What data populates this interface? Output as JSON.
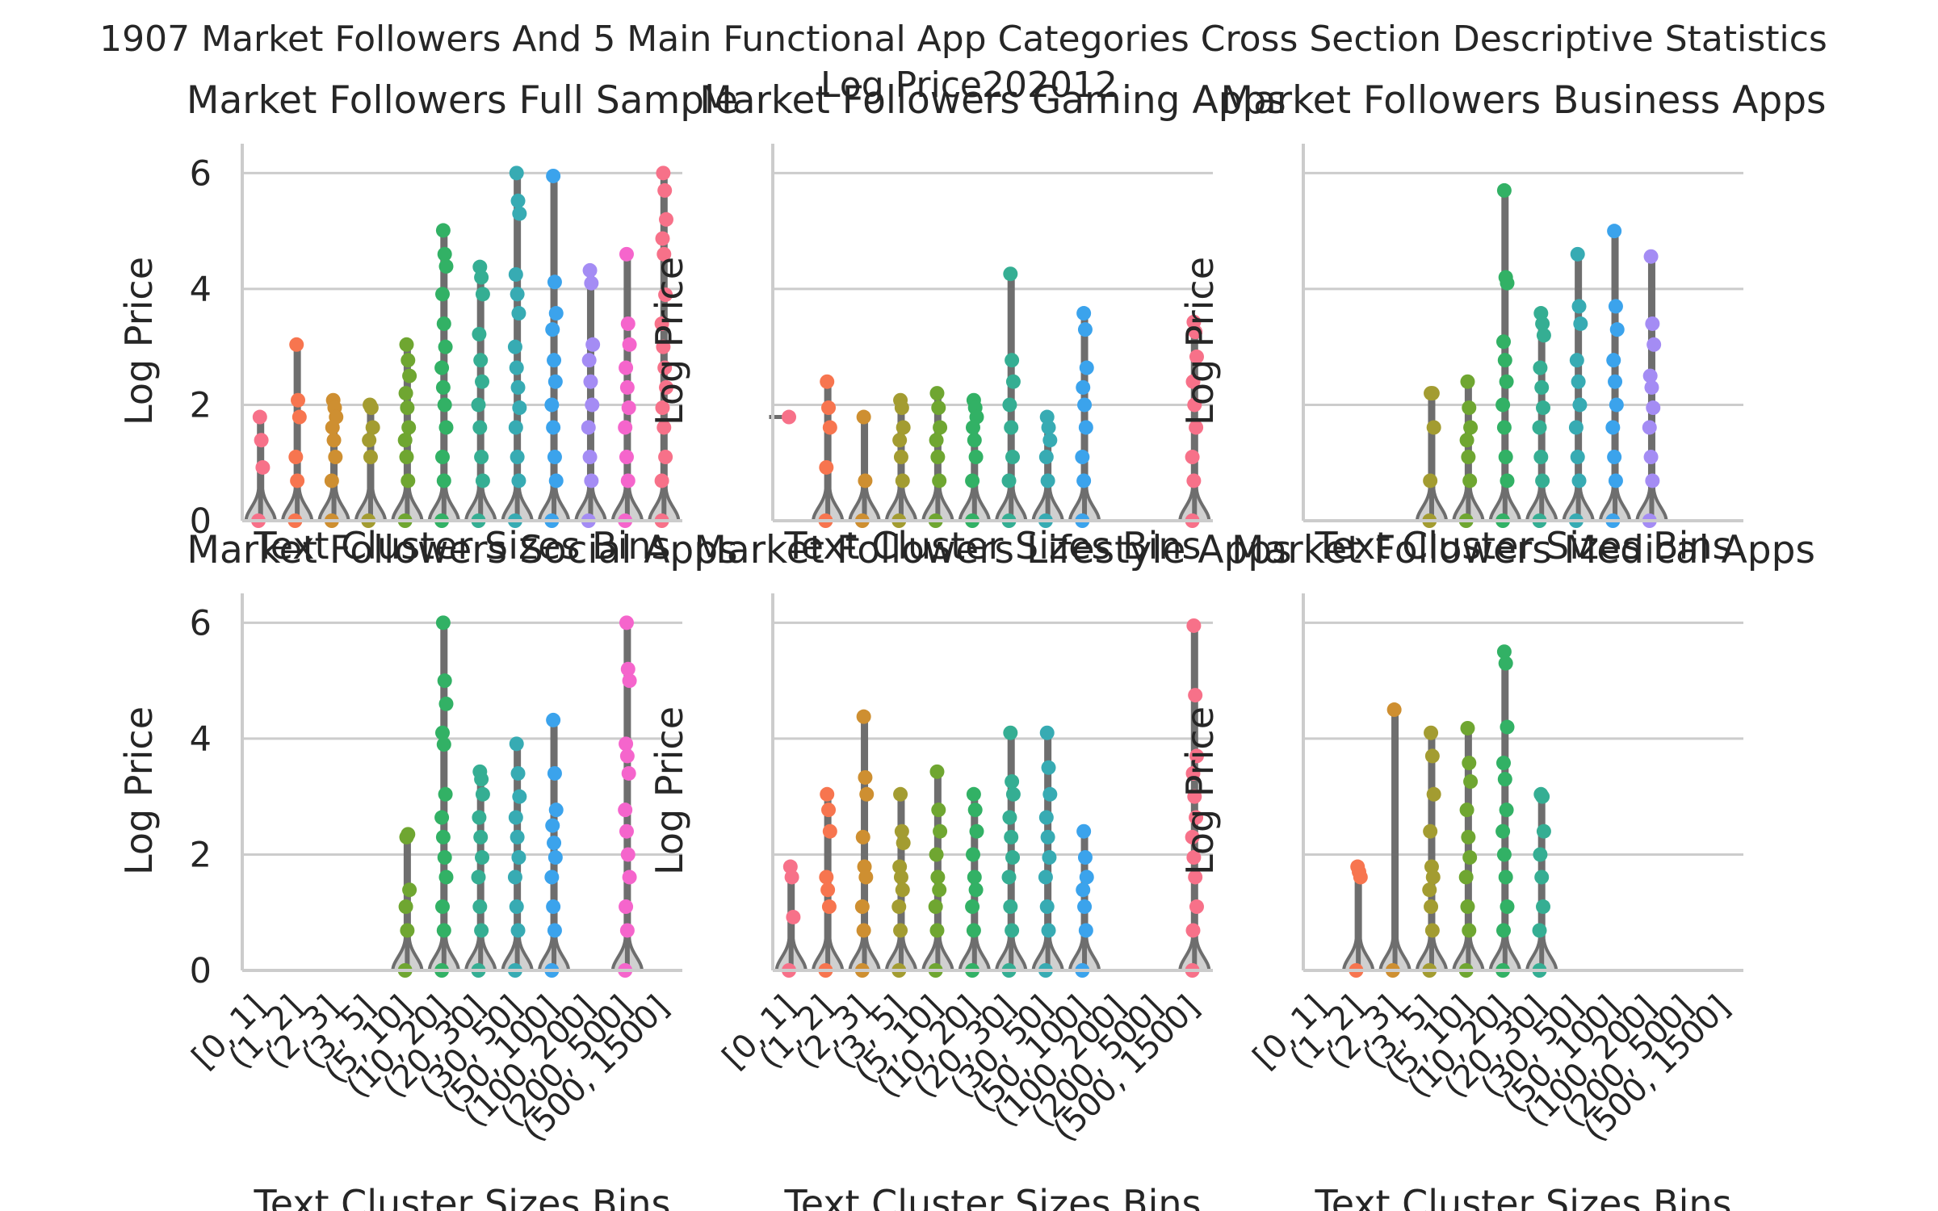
{
  "figure": {
    "title": "1907 Market Followers And 5 Main Functional App Categories Cross Section Descriptive Statistics\nLog Price202012"
  },
  "palette": [
    "#f77189",
    "#f7754f",
    "#ce8f31",
    "#a39c31",
    "#6fa631",
    "#32b165",
    "#35ae93",
    "#37abb3",
    "#3ba3ec",
    "#a48cf4",
    "#f565cc"
  ],
  "axis_style": {
    "grid": true,
    "grid_color": "#cccccc",
    "spine_color": "#cccccc",
    "violin_fill": "#d0d0d0",
    "violin_edge": "#6e6e6e"
  },
  "chart_data": [
    {
      "type": "violin+strip",
      "title": "Market Followers Full Sample",
      "xlabel": "Text Cluster Sizes Bins",
      "ylabel": "Log Price",
      "categories": [
        "[0, 1]",
        "(1, 2]",
        "(2, 3]",
        "(3, 5]",
        "(5, 10]",
        "(10, 20]",
        "(20, 30]",
        "(30, 50]",
        "(50, 100]",
        "(100, 200]",
        "(200, 500]",
        "(500, 1500]"
      ],
      "yticks": [
        0,
        2,
        4,
        6
      ],
      "ylim": [
        0,
        6.2
      ],
      "show_yticklabels": true,
      "show_xticklabels": false,
      "points": [
        [
          0,
          1.79,
          1.39,
          0.92
        ],
        [
          0,
          3.04,
          2.08,
          1.79,
          1.1,
          0.69
        ],
        [
          0,
          2.08,
          1.95,
          1.79,
          1.61,
          1.39,
          1.1,
          0.69
        ],
        [
          0,
          2.0,
          1.95,
          1.61,
          1.39,
          1.1
        ],
        [
          0,
          3.04,
          2.77,
          2.5,
          2.2,
          1.95,
          1.61,
          1.39,
          1.1,
          0.69
        ],
        [
          0,
          5.01,
          4.6,
          4.39,
          3.91,
          3.4,
          3.0,
          2.64,
          2.3,
          2.0,
          1.61,
          1.1,
          0.69
        ],
        [
          0,
          4.38,
          4.2,
          3.91,
          3.22,
          2.77,
          2.4,
          2.0,
          1.61,
          1.1,
          0.69
        ],
        [
          0,
          6.0,
          5.52,
          5.3,
          4.25,
          3.91,
          3.58,
          3.0,
          2.64,
          2.3,
          1.95,
          1.61,
          1.1,
          0.69
        ],
        [
          0,
          5.95,
          4.12,
          3.58,
          3.3,
          2.77,
          2.4,
          2.0,
          1.61,
          1.1,
          0.69
        ],
        [
          0,
          4.32,
          4.1,
          3.04,
          2.77,
          2.4,
          2.0,
          1.61,
          1.1,
          0.69
        ],
        [
          0,
          4.6,
          3.4,
          3.04,
          2.64,
          2.3,
          1.95,
          1.61,
          1.1,
          0.69
        ],
        [
          0,
          6.0,
          5.7,
          5.2,
          4.87,
          4.6,
          3.9,
          3.4,
          3.0,
          2.64,
          2.3,
          1.95,
          1.61,
          1.1,
          0.69
        ]
      ]
    },
    {
      "type": "violin+strip",
      "title": "Market Followers Gaming Apps",
      "xlabel": "Text Cluster Sizes Bins",
      "ylabel": "Log Price",
      "categories": [
        "[0, 1]",
        "(1, 2]",
        "(2, 3]",
        "(3, 5]",
        "(5, 10]",
        "(10, 20]",
        "(20, 30]",
        "(30, 50]",
        "(50, 100]",
        "(100, 200]",
        "(200, 500]",
        "(500, 1500]"
      ],
      "yticks": [
        0,
        2,
        4,
        6
      ],
      "ylim": [
        0,
        6.2
      ],
      "show_yticklabels": false,
      "show_xticklabels": false,
      "points": [
        [
          1.79
        ],
        [
          0,
          2.4,
          1.95,
          1.61,
          0.92
        ],
        [
          0,
          1.79,
          0.69
        ],
        [
          0,
          2.08,
          1.95,
          1.61,
          1.39,
          1.1,
          0.69
        ],
        [
          0,
          2.2,
          1.95,
          1.61,
          1.39,
          1.1,
          0.69
        ],
        [
          0,
          2.08,
          1.95,
          1.79,
          1.61,
          1.39,
          1.1,
          0.69
        ],
        [
          0,
          4.26,
          2.77,
          2.4,
          2.0,
          1.61,
          1.1,
          0.69
        ],
        [
          0,
          1.79,
          1.61,
          1.39,
          1.1,
          0.69
        ],
        [
          0,
          3.58,
          3.3,
          2.64,
          2.3,
          2.0,
          1.61,
          1.1,
          0.69
        ],
        [],
        [],
        [
          0,
          3.43,
          3.26,
          2.83,
          2.4,
          2.0,
          1.61,
          1.1,
          0.69
        ]
      ]
    },
    {
      "type": "violin+strip",
      "title": "Market Followers Business Apps",
      "xlabel": "Text Cluster Sizes Bins",
      "ylabel": "Log Price",
      "categories": [
        "[0, 1]",
        "(1, 2]",
        "(2, 3]",
        "(3, 5]",
        "(5, 10]",
        "(10, 20]",
        "(20, 30]",
        "(30, 50]",
        "(50, 100]",
        "(100, 200]",
        "(200, 500]",
        "(500, 1500]"
      ],
      "yticks": [
        0,
        2,
        4,
        6
      ],
      "ylim": [
        0,
        6.2
      ],
      "show_yticklabels": false,
      "show_xticklabels": false,
      "points": [
        [],
        [],
        [],
        [
          0,
          2.2,
          2.2,
          1.61,
          0.69
        ],
        [
          0,
          2.4,
          1.95,
          1.61,
          1.39,
          1.1,
          0.69
        ],
        [
          0,
          5.7,
          4.2,
          4.1,
          3.09,
          2.77,
          2.4,
          2.0,
          1.61,
          1.1,
          0.69
        ],
        [
          0,
          3.58,
          3.4,
          3.2,
          2.64,
          2.3,
          1.95,
          1.61,
          1.1,
          0.69
        ],
        [
          0,
          4.6,
          3.7,
          3.4,
          2.77,
          2.4,
          2.0,
          1.61,
          1.1,
          0.69
        ],
        [
          0,
          5.0,
          3.7,
          3.3,
          2.77,
          2.4,
          2.0,
          1.61,
          1.1,
          0.69
        ],
        [
          0,
          4.56,
          3.4,
          3.04,
          2.5,
          2.3,
          1.95,
          1.61,
          1.1,
          0.69
        ],
        [],
        []
      ]
    },
    {
      "type": "violin+strip",
      "title": "Market Followers Social Apps",
      "xlabel": "Text Cluster Sizes Bins",
      "ylabel": "Log Price",
      "categories": [
        "[0, 1]",
        "(1, 2]",
        "(2, 3]",
        "(3, 5]",
        "(5, 10]",
        "(10, 20]",
        "(20, 30]",
        "(30, 50]",
        "(50, 100]",
        "(100, 200]",
        "(200, 500]",
        "(500, 1500]"
      ],
      "yticks": [
        0,
        2,
        4,
        6
      ],
      "ylim": [
        0,
        6.2
      ],
      "show_yticklabels": true,
      "show_xticklabels": true,
      "points": [
        [],
        [],
        [],
        [],
        [
          0,
          2.3,
          2.35,
          1.39,
          1.1,
          0.69
        ],
        [
          0,
          6.0,
          5.0,
          4.6,
          4.1,
          3.9,
          3.04,
          2.64,
          2.3,
          1.95,
          1.61,
          1.1,
          0.69
        ],
        [
          0,
          3.43,
          3.3,
          3.04,
          2.64,
          2.3,
          1.95,
          1.61,
          1.1,
          0.69
        ],
        [
          0,
          3.91,
          3.4,
          3.0,
          2.64,
          2.3,
          1.95,
          1.61,
          1.1,
          0.69
        ],
        [
          0,
          4.32,
          3.4,
          2.77,
          2.5,
          2.2,
          1.95,
          1.61,
          1.1,
          0.69
        ],
        [],
        [
          0,
          6.0,
          5.2,
          5.0,
          3.91,
          3.7,
          3.4,
          2.77,
          2.4,
          2.0,
          1.61,
          1.1,
          0.69
        ],
        []
      ]
    },
    {
      "type": "violin+strip",
      "title": "Market Followers Lifestyle Apps",
      "xlabel": "Text Cluster Sizes Bins",
      "ylabel": "Log Price",
      "categories": [
        "[0, 1]",
        "(1, 2]",
        "(2, 3]",
        "(3, 5]",
        "(5, 10]",
        "(10, 20]",
        "(20, 30]",
        "(30, 50]",
        "(50, 100]",
        "(100, 200]",
        "(200, 500]",
        "(500, 1500]"
      ],
      "yticks": [
        0,
        2,
        4,
        6
      ],
      "ylim": [
        0,
        6.2
      ],
      "show_yticklabels": false,
      "show_xticklabels": true,
      "points": [
        [
          0,
          1.79,
          1.61,
          0.92
        ],
        [
          0,
          3.04,
          2.77,
          2.4,
          1.61,
          1.39,
          1.1
        ],
        [
          0,
          4.38,
          3.33,
          3.04,
          2.3,
          1.79,
          1.61,
          1.1,
          0.69
        ],
        [
          0,
          3.04,
          2.4,
          2.2,
          1.79,
          1.61,
          1.39,
          1.1,
          0.69
        ],
        [
          0,
          3.43,
          2.77,
          2.4,
          2.0,
          1.61,
          1.39,
          1.1,
          0.69
        ],
        [
          0,
          3.04,
          2.77,
          2.4,
          2.0,
          1.61,
          1.39,
          1.1,
          0.69
        ],
        [
          0,
          4.1,
          3.26,
          3.04,
          2.64,
          2.3,
          1.95,
          1.61,
          1.1,
          0.69
        ],
        [
          0,
          4.1,
          3.5,
          3.04,
          2.64,
          2.3,
          1.95,
          1.61,
          1.1,
          0.69
        ],
        [
          0,
          2.4,
          1.95,
          1.61,
          1.39,
          1.1,
          0.69
        ],
        [],
        [],
        [
          0,
          5.95,
          4.75,
          3.7,
          3.4,
          3.0,
          2.64,
          2.3,
          1.95,
          1.61,
          1.1,
          0.69
        ]
      ]
    },
    {
      "type": "violin+strip",
      "title": "Market Followers Medical Apps",
      "xlabel": "Text Cluster Sizes Bins",
      "ylabel": "Log Price",
      "categories": [
        "[0, 1]",
        "(1, 2]",
        "(2, 3]",
        "(3, 5]",
        "(5, 10]",
        "(10, 20]",
        "(20, 30]",
        "(30, 50]",
        "(50, 100]",
        "(100, 200]",
        "(200, 500]",
        "(500, 1500]"
      ],
      "yticks": [
        0,
        2,
        4,
        6
      ],
      "ylim": [
        0,
        6.2
      ],
      "show_yticklabels": false,
      "show_xticklabels": true,
      "points": [
        [],
        [
          0,
          1.79,
          1.7,
          1.61
        ],
        [
          0,
          4.5
        ],
        [
          0,
          4.1,
          3.7,
          3.04,
          2.4,
          1.79,
          1.61,
          1.39,
          1.1,
          0.69
        ],
        [
          0,
          4.18,
          3.58,
          3.26,
          2.77,
          2.3,
          1.95,
          1.61,
          1.1,
          0.69
        ],
        [
          0,
          5.5,
          5.3,
          4.2,
          3.58,
          3.3,
          2.77,
          2.4,
          2.0,
          1.61,
          1.1,
          0.69
        ],
        [
          0,
          3.04,
          3.0,
          2.4,
          2.0,
          1.61,
          1.1,
          0.69
        ],
        [],
        [],
        [],
        [],
        []
      ]
    }
  ]
}
